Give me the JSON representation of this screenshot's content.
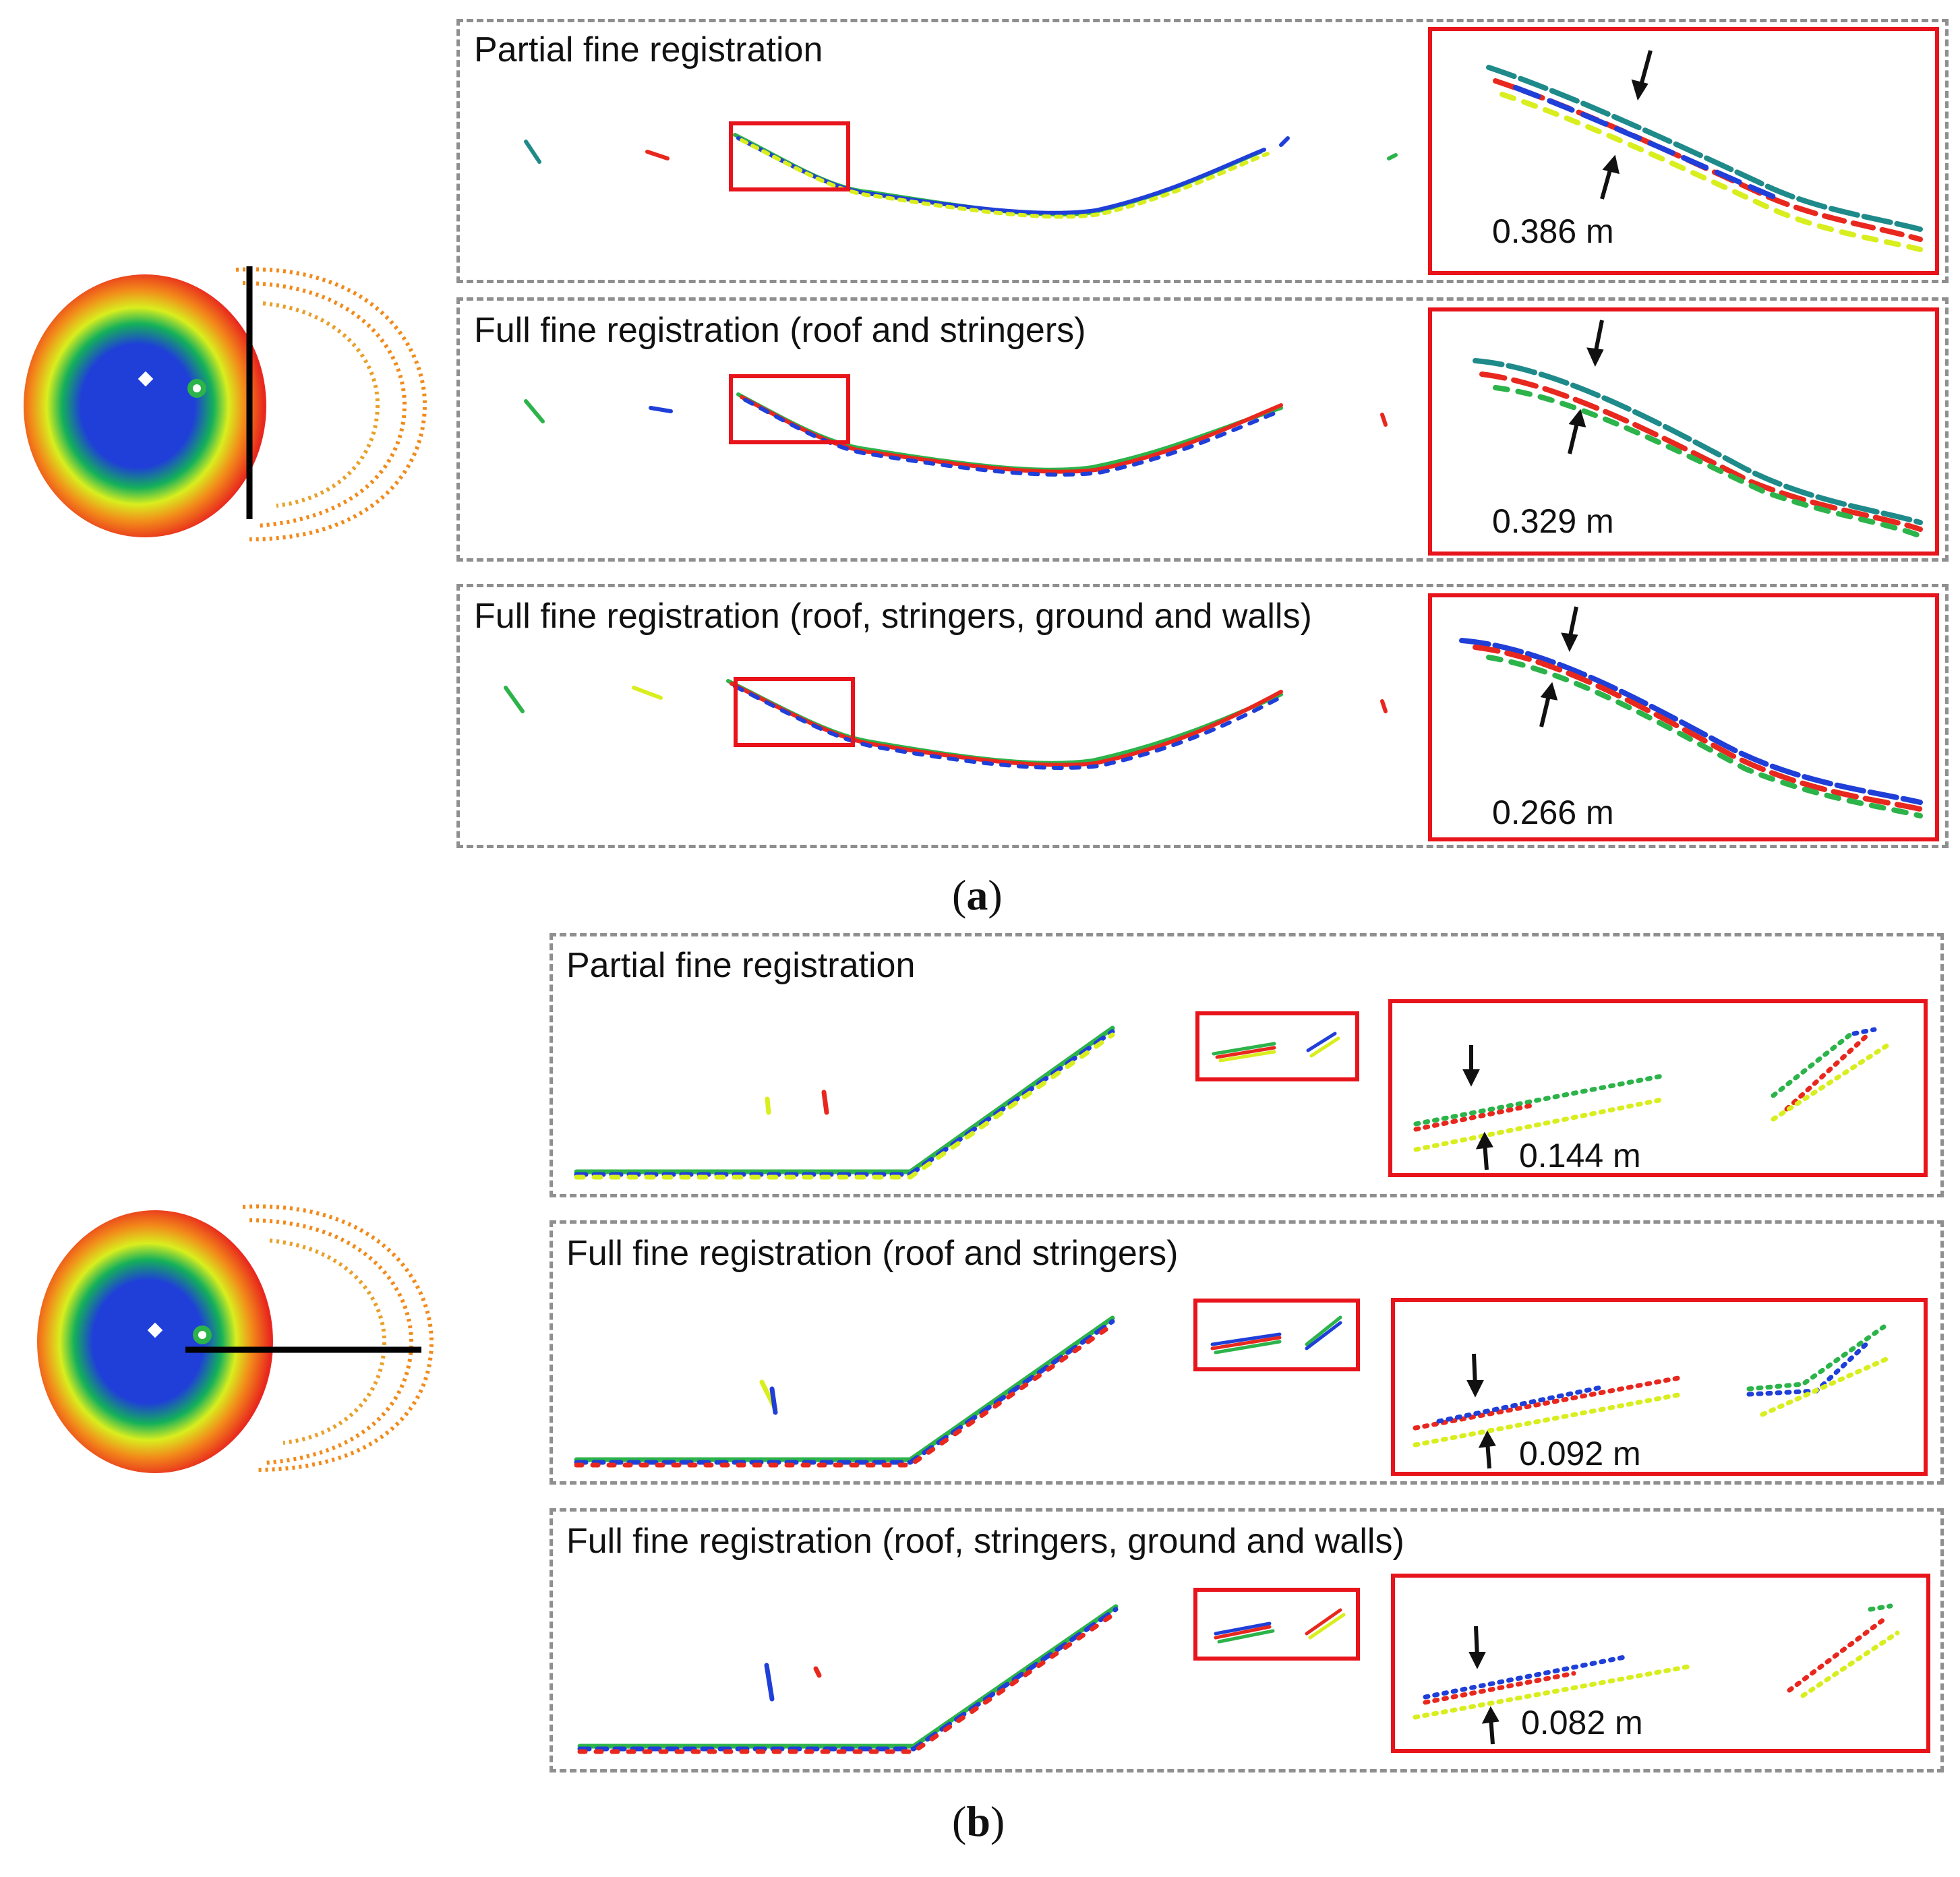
{
  "figure": {
    "part_a": {
      "label_open": "(",
      "label_letter": "a",
      "label_close": ")",
      "rows": [
        {
          "title": "Partial fine registration",
          "measurement": "0.386 m"
        },
        {
          "title": "Full fine registration (roof and stringers)",
          "measurement": "0.329 m"
        },
        {
          "title": "Full fine registration (roof, stringers, ground and walls)",
          "measurement": "0.266 m"
        }
      ]
    },
    "part_b": {
      "label_open": "(",
      "label_letter": "b",
      "label_close": ")",
      "rows": [
        {
          "title": "Partial fine registration",
          "measurement": "0.144 m"
        },
        {
          "title": "Full fine registration (roof and stringers)",
          "measurement": "0.092 m"
        },
        {
          "title": "Full fine registration (roof, stringers, ground and walls)",
          "measurement": "0.082 m"
        }
      ]
    }
  },
  "colors": {
    "highlight_red": "#e8141b",
    "panel_border": "#8f8f8f",
    "scan_red": "#e8281e",
    "scan_green": "#2cb34a",
    "scan_blue": "#1f3fd8",
    "scan_yellow": "#d9ee1e",
    "scan_orange": "#f28a1a",
    "scan_teal": "#1f8a8a"
  }
}
